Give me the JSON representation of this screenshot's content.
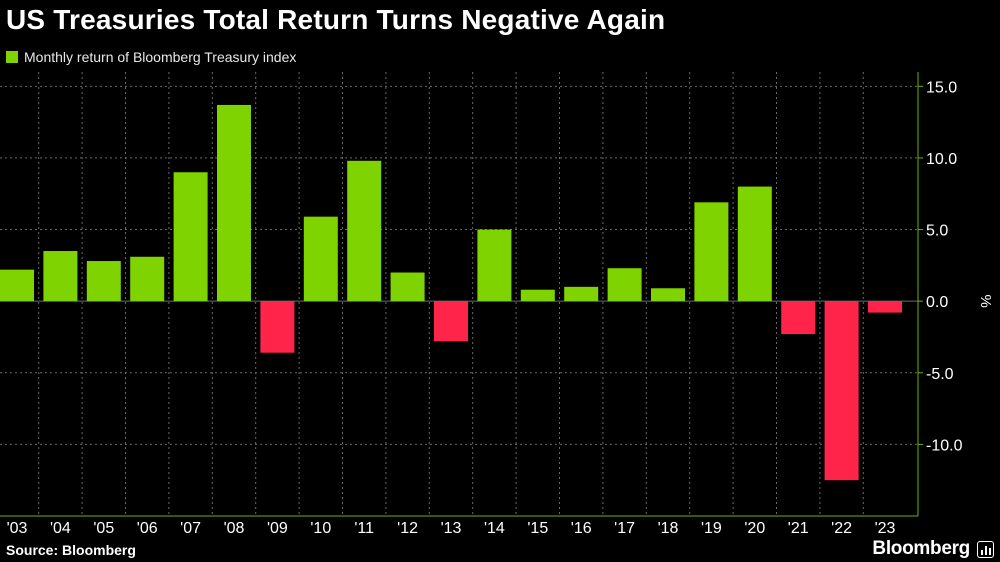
{
  "title": "US Treasuries Total Return Turns Negative Again",
  "legend": {
    "label": "Monthly return of Bloomberg Treasury index"
  },
  "source": "Source: Bloomberg",
  "brand": "Bloomberg",
  "colors": {
    "positive": "#7fd300",
    "negative": "#ff2449",
    "grid": "#6a6a6a",
    "axis": "#6ab400",
    "background": "#000000"
  },
  "chart_data": {
    "type": "bar",
    "categories": [
      "'03",
      "'04",
      "'05",
      "'06",
      "'07",
      "'08",
      "'09",
      "'10",
      "'11",
      "'12",
      "'13",
      "'14",
      "'15",
      "'16",
      "'17",
      "'18",
      "'19",
      "'20",
      "'21",
      "'22",
      "'23"
    ],
    "values": [
      2.2,
      3.5,
      2.8,
      3.1,
      9.0,
      13.7,
      -3.6,
      5.9,
      9.8,
      2.0,
      -2.8,
      5.0,
      0.8,
      1.0,
      2.3,
      0.9,
      6.9,
      8.0,
      -2.3,
      -12.5,
      -0.8
    ],
    "ylim": [
      -15,
      16
    ],
    "yticks": [
      15,
      10,
      5,
      0,
      -5,
      -10
    ],
    "ytick_labels": [
      "15.0",
      "10.0",
      "5.0",
      "0.0",
      "-5.0",
      "-10.0"
    ],
    "ylabel": "%",
    "y_axis_position": "right",
    "grid": true
  }
}
